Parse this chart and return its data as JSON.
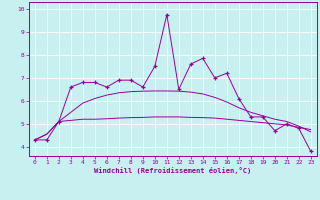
{
  "xlabel": "Windchill (Refroidissement éolien,°C)",
  "bg_color": "#c8f0f0",
  "line_color": "#990099",
  "grid_color": "#ffffff",
  "xlim": [
    -0.5,
    23.5
  ],
  "ylim": [
    3.6,
    10.3
  ],
  "xticks": [
    0,
    1,
    2,
    3,
    4,
    5,
    6,
    7,
    8,
    9,
    10,
    11,
    12,
    13,
    14,
    15,
    16,
    17,
    18,
    19,
    20,
    21,
    22,
    23
  ],
  "yticks": [
    4,
    5,
    6,
    7,
    8,
    9,
    10
  ],
  "x": [
    0,
    1,
    2,
    3,
    4,
    5,
    6,
    7,
    8,
    9,
    10,
    11,
    12,
    13,
    14,
    15,
    16,
    17,
    18,
    19,
    20,
    21,
    22,
    23
  ],
  "y_jagged": [
    4.3,
    4.3,
    5.1,
    6.6,
    6.8,
    6.8,
    6.6,
    6.9,
    6.9,
    6.6,
    7.5,
    9.75,
    6.5,
    7.6,
    7.85,
    7.0,
    7.2,
    6.1,
    5.3,
    5.3,
    4.7,
    5.0,
    4.8,
    3.8
  ],
  "y_trend1": [
    4.3,
    4.55,
    5.1,
    5.15,
    5.2,
    5.2,
    5.22,
    5.25,
    5.27,
    5.28,
    5.3,
    5.3,
    5.3,
    5.28,
    5.27,
    5.25,
    5.2,
    5.15,
    5.1,
    5.05,
    5.0,
    4.95,
    4.85,
    4.75
  ],
  "y_trend2": [
    4.3,
    4.55,
    5.1,
    5.5,
    5.9,
    6.1,
    6.25,
    6.35,
    6.4,
    6.42,
    6.43,
    6.43,
    6.42,
    6.38,
    6.3,
    6.15,
    5.95,
    5.7,
    5.5,
    5.35,
    5.2,
    5.1,
    4.9,
    4.65
  ]
}
